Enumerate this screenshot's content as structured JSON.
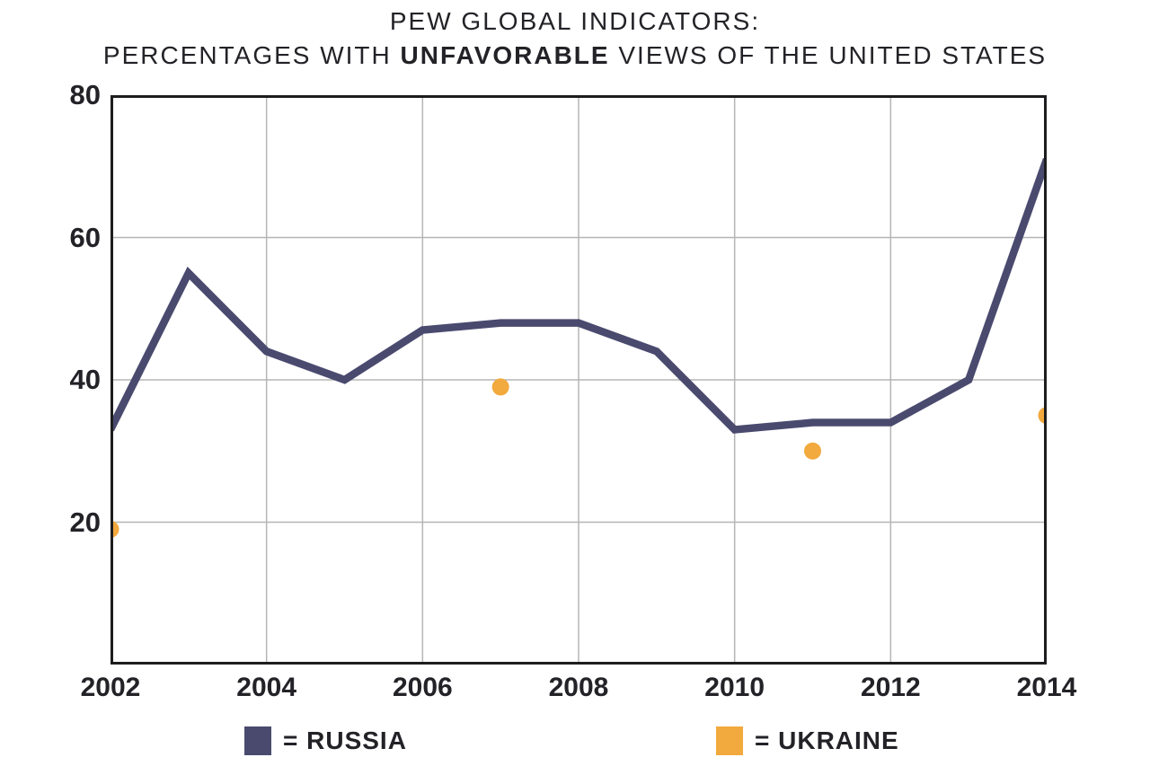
{
  "title": {
    "line1": "PEW GLOBAL INDICATORS:",
    "line2_prefix": "PERCENTAGES WITH ",
    "line2_bold": "UNFAVORABLE",
    "line2_suffix": " VIEWS OF THE UNITED STATES"
  },
  "legend": {
    "russia_label": "= RUSSIA",
    "ukraine_label": "= UKRAINE"
  },
  "colors": {
    "russia": "#4A4A6F",
    "ukraine": "#F2A93D",
    "grid": "#B5B5B5",
    "axis": "#1D1D1F",
    "text": "#232227",
    "background": "#FFFFFF"
  },
  "chart_data": {
    "type": "line",
    "title": "PEW GLOBAL INDICATORS: PERCENTAGES WITH UNFAVORABLE VIEWS OF THE UNITED STATES",
    "xlabel": "",
    "ylabel": "",
    "x_range": [
      2002,
      2014
    ],
    "y_range": [
      0,
      80
    ],
    "x_ticks": [
      2002,
      2004,
      2006,
      2008,
      2010,
      2012,
      2014
    ],
    "y_ticks": [
      80,
      60,
      40,
      20
    ],
    "x_gridlines": [
      2004,
      2006,
      2008,
      2010,
      2012
    ],
    "y_gridlines": [
      20,
      40,
      60
    ],
    "grid": true,
    "legend_position": "bottom",
    "series": [
      {
        "name": "RUSSIA",
        "type": "line",
        "color": "#4A4A6F",
        "x": [
          2002,
          2003,
          2004,
          2005,
          2006,
          2007,
          2008,
          2009,
          2010,
          2011,
          2012,
          2013,
          2014
        ],
        "values": [
          33,
          55,
          44,
          40,
          47,
          48,
          48,
          44,
          33,
          34,
          34,
          40,
          71
        ]
      },
      {
        "name": "UKRAINE",
        "type": "scatter",
        "color": "#F2A93D",
        "x": [
          2002,
          2007,
          2011,
          2014
        ],
        "values": [
          19,
          39,
          30,
          35
        ]
      }
    ]
  }
}
